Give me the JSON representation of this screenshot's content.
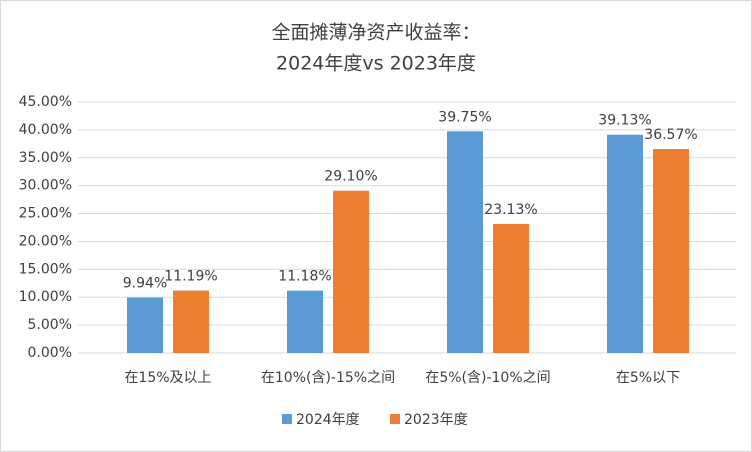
{
  "chart_data": {
    "type": "bar",
    "title": "全面摊薄净资产收益率：",
    "subtitle": "2024年度vs 2023年度",
    "categories": [
      "在15%及以上",
      "在10%(含)-15%之间",
      "在5%(含)-10%之间",
      "在5%以下"
    ],
    "series": [
      {
        "name": "2024年度",
        "color": "#5b9bd5",
        "values": [
          9.94,
          11.18,
          39.75,
          39.13
        ],
        "value_labels": [
          "9.94%",
          "11.18%",
          "39.75%",
          "39.13%"
        ]
      },
      {
        "name": "2023年度",
        "color": "#ed7d31",
        "values": [
          11.19,
          29.1,
          23.13,
          36.57
        ],
        "value_labels": [
          "11.19%",
          "29.10%",
          "23.13%",
          "36.57%"
        ]
      }
    ],
    "ylim": [
      0,
      45
    ],
    "yticks": [
      {
        "value": 0,
        "label": "0.00%"
      },
      {
        "value": 5,
        "label": "5.00%"
      },
      {
        "value": 10,
        "label": "10.00%"
      },
      {
        "value": 15,
        "label": "15.00%"
      },
      {
        "value": 20,
        "label": "20.00%"
      },
      {
        "value": 25,
        "label": "25.00%"
      },
      {
        "value": 30,
        "label": "30.00%"
      },
      {
        "value": 35,
        "label": "35.00%"
      },
      {
        "value": 40,
        "label": "40.00%"
      },
      {
        "value": 45,
        "label": "45.00%"
      }
    ],
    "grid": true,
    "legend": "bottom"
  }
}
